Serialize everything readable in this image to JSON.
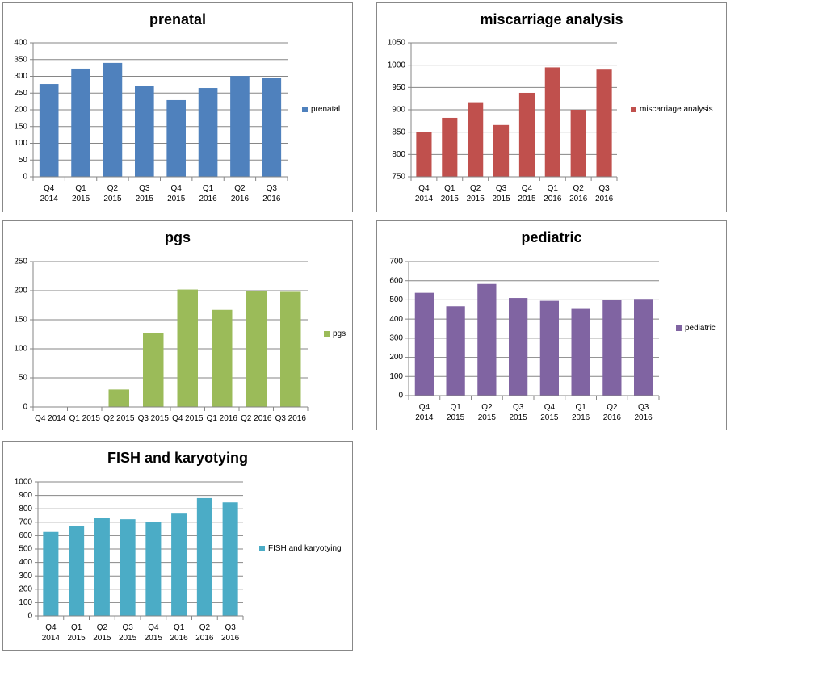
{
  "chart_data": [
    {
      "type": "bar",
      "title": "prenatal",
      "categories": [
        "Q4 2014",
        "Q1 2015",
        "Q2 2015",
        "Q3 2015",
        "Q4 2015",
        "Q1 2016",
        "Q2 2016",
        "Q3 2016"
      ],
      "series": [
        {
          "name": "prenatal",
          "color": "#4f81bd",
          "values": [
            277,
            323,
            340,
            272,
            229,
            265,
            301,
            294
          ]
        }
      ],
      "ylim": [
        0,
        400
      ],
      "yticks": [
        0,
        50,
        100,
        150,
        200,
        250,
        300,
        350,
        400
      ],
      "grid": true,
      "legend": "right"
    },
    {
      "type": "bar",
      "title": "miscarriage analysis",
      "categories": [
        "Q4 2014",
        "Q1 2015",
        "Q2 2015",
        "Q3 2015",
        "Q4 2015",
        "Q1 2016",
        "Q2 2016",
        "Q3 2016"
      ],
      "series": [
        {
          "name": "miscarriage analysis",
          "color": "#c0504d",
          "values": [
            850,
            882,
            917,
            866,
            938,
            995,
            900,
            990
          ]
        }
      ],
      "ylim": [
        750,
        1050
      ],
      "yticks": [
        750,
        800,
        850,
        900,
        950,
        1000,
        1050
      ],
      "grid": true,
      "legend": "right"
    },
    {
      "type": "bar",
      "title": "pgs",
      "categories": [
        "Q4 2014",
        "Q1 2015",
        "Q2 2015",
        "Q3 2015",
        "Q4 2015",
        "Q1 2016",
        "Q2 2016",
        "Q3 2016"
      ],
      "series": [
        {
          "name": "pgs",
          "color": "#9bbb59",
          "values": [
            null,
            null,
            30,
            127,
            202,
            167,
            200,
            198
          ]
        }
      ],
      "ylim": [
        0,
        250
      ],
      "yticks": [
        0,
        50,
        100,
        150,
        200,
        250
      ],
      "grid": true,
      "legend": "right"
    },
    {
      "type": "bar",
      "title": "pediatric",
      "categories": [
        "Q4 2014",
        "Q1 2015",
        "Q2 2015",
        "Q3 2015",
        "Q4 2015",
        "Q1 2016",
        "Q2 2016",
        "Q3 2016"
      ],
      "series": [
        {
          "name": "pediatric",
          "color": "#8064a2",
          "values": [
            537,
            467,
            583,
            510,
            495,
            453,
            500,
            505
          ]
        }
      ],
      "ylim": [
        0,
        700
      ],
      "yticks": [
        0,
        100,
        200,
        300,
        400,
        500,
        600,
        700
      ],
      "grid": true,
      "legend": "right"
    },
    {
      "type": "bar",
      "title": "FISH and karyotying",
      "categories": [
        "Q4 2014",
        "Q1 2015",
        "Q2 2015",
        "Q3 2015",
        "Q4 2015",
        "Q1 2016",
        "Q2 2016",
        "Q3 2016"
      ],
      "series": [
        {
          "name": "FISH and karyotying",
          "color": "#4bacc6",
          "values": [
            628,
            672,
            733,
            722,
            703,
            770,
            880,
            848
          ]
        }
      ],
      "ylim": [
        0,
        1000
      ],
      "yticks": [
        0,
        100,
        200,
        300,
        400,
        500,
        600,
        700,
        800,
        900,
        1000
      ],
      "grid": true,
      "legend": "right"
    }
  ]
}
